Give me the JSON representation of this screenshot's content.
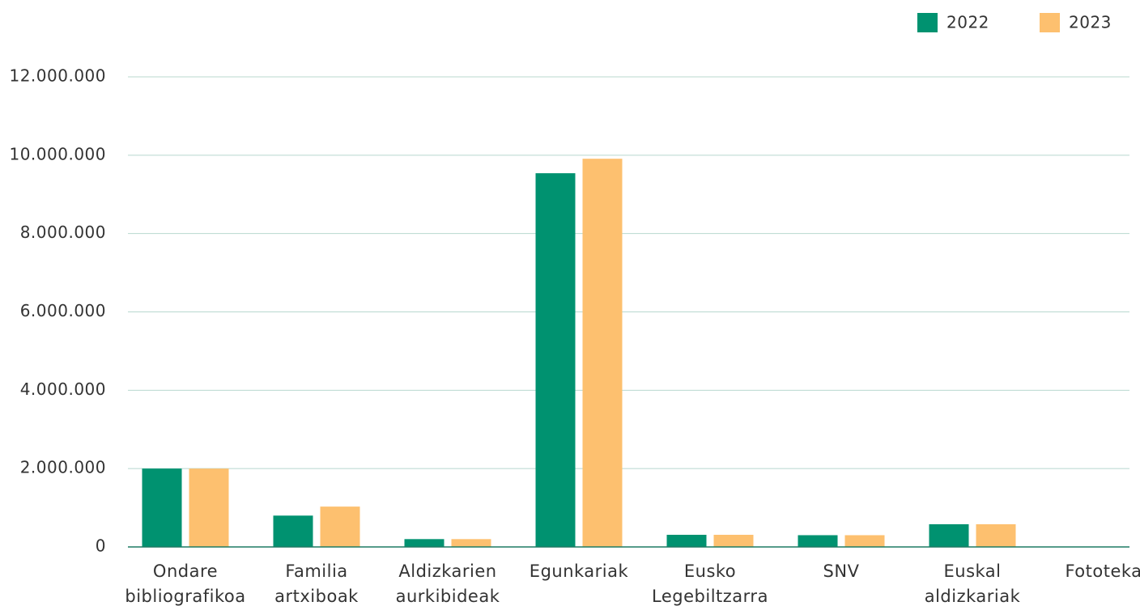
{
  "chart_data": {
    "type": "bar",
    "categories": [
      [
        "Ondare",
        "bibliografikoa"
      ],
      [
        "Familia",
        "artxiboak"
      ],
      [
        "Aldizkarien",
        "aurkibideak"
      ],
      [
        "Egunkariak"
      ],
      [
        "Eusko",
        "Legebiltzarra"
      ],
      [
        "SNV"
      ],
      [
        "Euskal",
        "aldizkariak"
      ],
      [
        "Fototeka"
      ]
    ],
    "series": [
      {
        "name": "2022",
        "color": "#009270",
        "values": [
          2000000,
          800000,
          200000,
          9540000,
          310000,
          300000,
          580000,
          0
        ]
      },
      {
        "name": "2023",
        "color": "#fdc06f",
        "values": [
          2000000,
          1030000,
          200000,
          9910000,
          310000,
          300000,
          580000,
          0
        ]
      }
    ],
    "ylim": [
      0,
      12000000
    ],
    "yticks": [
      0,
      {
        "value": 2000000,
        "label": "2.000.000"
      },
      {
        "value": 4000000,
        "label": "4.000.000"
      },
      {
        "value": 6000000,
        "label": "6.000.000"
      },
      {
        "value": 8000000,
        "label": "8.000.000"
      },
      {
        "value": 10000000,
        "label": "10.000.000"
      },
      {
        "value": 12000000,
        "label": "12.000.000"
      }
    ],
    "grid": true,
    "legend": "top-right"
  }
}
